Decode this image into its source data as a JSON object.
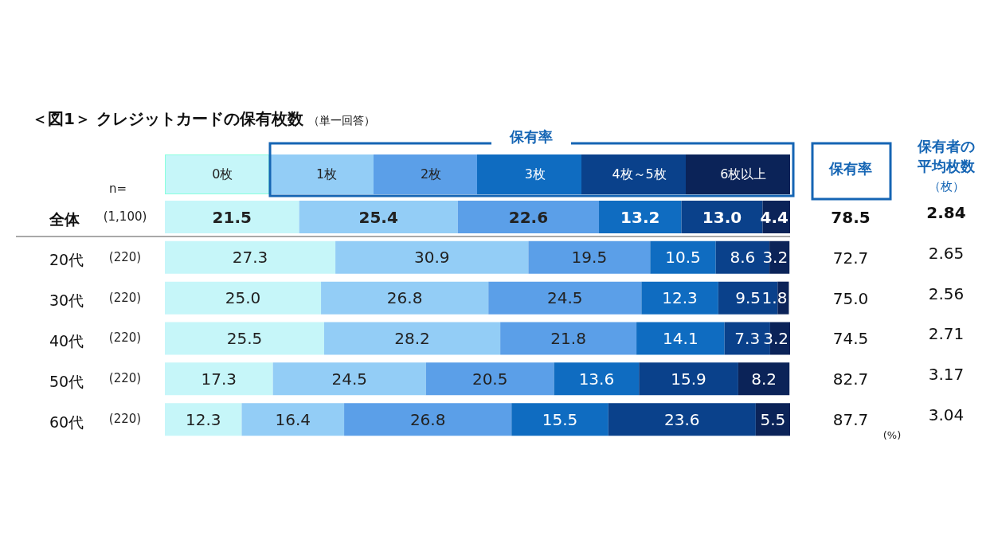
{
  "chart_data": {
    "type": "bar",
    "orientation": "horizontal",
    "stacked": true,
    "title": "＜図1＞ クレジットカードの保有枚数",
    "subtitle": "（単一回答）",
    "legend": "top",
    "categories": [
      "全体",
      "20代",
      "30代",
      "40代",
      "50代",
      "60代"
    ],
    "series": [
      {
        "name": "0枚",
        "color": "#c6f6f9",
        "values": [
          21.5,
          27.3,
          25.0,
          25.5,
          17.3,
          12.3
        ],
        "value_labels": [
          "21.5",
          "27.3",
          "25.0",
          "25.5",
          "17.3",
          "12.3"
        ]
      },
      {
        "name": "1枚",
        "color": "#93cdf6",
        "values": [
          25.4,
          30.9,
          26.8,
          28.2,
          24.5,
          16.4
        ],
        "value_labels": [
          "25.4",
          "30.9",
          "26.8",
          "28.2",
          "24.5",
          "16.4"
        ]
      },
      {
        "name": "2枚",
        "color": "#5b9fe8",
        "values": [
          22.6,
          19.5,
          24.5,
          21.8,
          20.5,
          26.8
        ],
        "value_labels": [
          "22.6",
          "19.5",
          "24.5",
          "21.8",
          "20.5",
          "26.8"
        ]
      },
      {
        "name": "3枚",
        "color": "#0f6cc1",
        "values": [
          13.2,
          10.5,
          12.3,
          14.1,
          13.6,
          15.5
        ],
        "value_labels": [
          "13.2",
          "10.5",
          "12.3",
          "14.1",
          "13.6",
          "15.5"
        ]
      },
      {
        "name": "4枚～5枚",
        "color": "#0a418b",
        "values": [
          13.0,
          8.6,
          9.5,
          7.3,
          15.9,
          23.6
        ],
        "value_labels": [
          "13.0",
          "8.6",
          "9.5",
          "7.3",
          "15.9",
          "23.6"
        ]
      },
      {
        "name": "6枚以上",
        "color": "#0b2358",
        "values": [
          4.4,
          3.2,
          1.8,
          3.2,
          8.2,
          5.5
        ],
        "value_labels": [
          "4.4",
          "3.2",
          "1.8",
          "3.2",
          "8.2",
          "5.5"
        ]
      }
    ],
    "annotations": [
      "n=",
      "(1,100)",
      "(220)",
      "(220)",
      "(220)",
      "(220)",
      "(220)",
      "保有率",
      "保有率",
      "78.5",
      "72.7",
      "75.0",
      "74.5",
      "82.7",
      "87.7",
      "保有者の",
      "平均枚数",
      "（枚）",
      "2.84",
      "2.65",
      "2.56",
      "2.71",
      "3.17",
      "3.04",
      "(%)"
    ]
  }
}
